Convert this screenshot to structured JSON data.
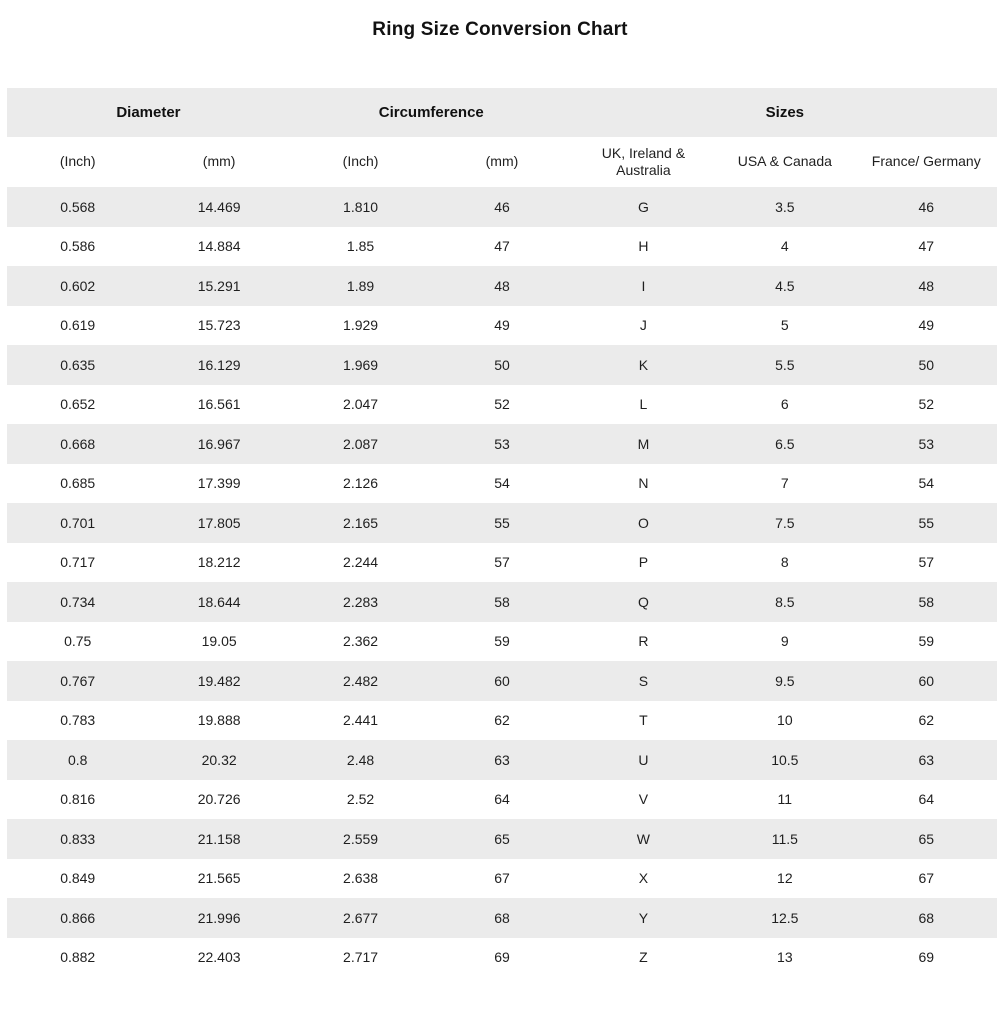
{
  "title": "Ring Size Conversion Chart",
  "colors": {
    "background": "#ffffff",
    "stripe": "#ebebeb",
    "header_band": "#ebebeb",
    "text": "#1f1f1f"
  },
  "table": {
    "group_headers": [
      {
        "label": "Diameter",
        "span": 2
      },
      {
        "label": "Circumference",
        "span": 2
      },
      {
        "label": "Sizes",
        "span": 3
      }
    ],
    "column_headers": [
      "(Inch)",
      "(mm)",
      "(Inch)",
      "(mm)",
      "UK, Ireland & Australia",
      "USA & Canada",
      "France/ Germany"
    ],
    "rows": [
      [
        "0.568",
        "14.469",
        "1.810",
        "46",
        "G",
        "3.5",
        "46"
      ],
      [
        "0.586",
        "14.884",
        "1.85",
        "47",
        "H",
        "4",
        "47"
      ],
      [
        "0.602",
        "15.291",
        "1.89",
        "48",
        "I",
        "4.5",
        "48"
      ],
      [
        "0.619",
        "15.723",
        "1.929",
        "49",
        "J",
        "5",
        "49"
      ],
      [
        "0.635",
        "16.129",
        "1.969",
        "50",
        "K",
        "5.5",
        "50"
      ],
      [
        "0.652",
        "16.561",
        "2.047",
        "52",
        "L",
        "6",
        "52"
      ],
      [
        "0.668",
        "16.967",
        "2.087",
        "53",
        "M",
        "6.5",
        "53"
      ],
      [
        "0.685",
        "17.399",
        "2.126",
        "54",
        "N",
        "7",
        "54"
      ],
      [
        "0.701",
        "17.805",
        "2.165",
        "55",
        "O",
        "7.5",
        "55"
      ],
      [
        "0.717",
        "18.212",
        "2.244",
        "57",
        "P",
        "8",
        "57"
      ],
      [
        "0.734",
        "18.644",
        "2.283",
        "58",
        "Q",
        "8.5",
        "58"
      ],
      [
        "0.75",
        "19.05",
        "2.362",
        "59",
        "R",
        "9",
        "59"
      ],
      [
        "0.767",
        "19.482",
        "2.482",
        "60",
        "S",
        "9.5",
        "60"
      ],
      [
        "0.783",
        "19.888",
        "2.441",
        "62",
        "T",
        "10",
        "62"
      ],
      [
        "0.8",
        "20.32",
        "2.48",
        "63",
        "U",
        "10.5",
        "63"
      ],
      [
        "0.816",
        "20.726",
        "2.52",
        "64",
        "V",
        "11",
        "64"
      ],
      [
        "0.833",
        "21.158",
        "2.559",
        "65",
        "W",
        "11.5",
        "65"
      ],
      [
        "0.849",
        "21.565",
        "2.638",
        "67",
        "X",
        "12",
        "67"
      ],
      [
        "0.866",
        "21.996",
        "2.677",
        "68",
        "Y",
        "12.5",
        "68"
      ],
      [
        "0.882",
        "22.403",
        "2.717",
        "69",
        "Z",
        "13",
        "69"
      ]
    ]
  },
  "chart_data": {
    "type": "table",
    "title": "Ring Size Conversion Chart",
    "columns": [
      "Diameter (Inch)",
      "Diameter (mm)",
      "Circumference (Inch)",
      "Circumference (mm)",
      "UK, Ireland & Australia",
      "USA & Canada",
      "France/ Germany"
    ],
    "rows": [
      [
        "0.568",
        "14.469",
        "1.810",
        "46",
        "G",
        "3.5",
        "46"
      ],
      [
        "0.586",
        "14.884",
        "1.85",
        "47",
        "H",
        "4",
        "47"
      ],
      [
        "0.602",
        "15.291",
        "1.89",
        "48",
        "I",
        "4.5",
        "48"
      ],
      [
        "0.619",
        "15.723",
        "1.929",
        "49",
        "J",
        "5",
        "49"
      ],
      [
        "0.635",
        "16.129",
        "1.969",
        "50",
        "K",
        "5.5",
        "50"
      ],
      [
        "0.652",
        "16.561",
        "2.047",
        "52",
        "L",
        "6",
        "52"
      ],
      [
        "0.668",
        "16.967",
        "2.087",
        "53",
        "M",
        "6.5",
        "53"
      ],
      [
        "0.685",
        "17.399",
        "2.126",
        "54",
        "N",
        "7",
        "54"
      ],
      [
        "0.701",
        "17.805",
        "2.165",
        "55",
        "O",
        "7.5",
        "55"
      ],
      [
        "0.717",
        "18.212",
        "2.244",
        "57",
        "P",
        "8",
        "57"
      ],
      [
        "0.734",
        "18.644",
        "2.283",
        "58",
        "Q",
        "8.5",
        "58"
      ],
      [
        "0.75",
        "19.05",
        "2.362",
        "59",
        "R",
        "9",
        "59"
      ],
      [
        "0.767",
        "19.482",
        "2.482",
        "60",
        "S",
        "9.5",
        "60"
      ],
      [
        "0.783",
        "19.888",
        "2.441",
        "62",
        "T",
        "10",
        "62"
      ],
      [
        "0.8",
        "20.32",
        "2.48",
        "63",
        "U",
        "10.5",
        "63"
      ],
      [
        "0.816",
        "20.726",
        "2.52",
        "64",
        "V",
        "11",
        "64"
      ],
      [
        "0.833",
        "21.158",
        "2.559",
        "65",
        "W",
        "11.5",
        "65"
      ],
      [
        "0.849",
        "21.565",
        "2.638",
        "67",
        "X",
        "12",
        "67"
      ],
      [
        "0.866",
        "21.996",
        "2.677",
        "68",
        "Y",
        "12.5",
        "68"
      ],
      [
        "0.882",
        "22.403",
        "2.717",
        "69",
        "Z",
        "13",
        "69"
      ]
    ]
  }
}
